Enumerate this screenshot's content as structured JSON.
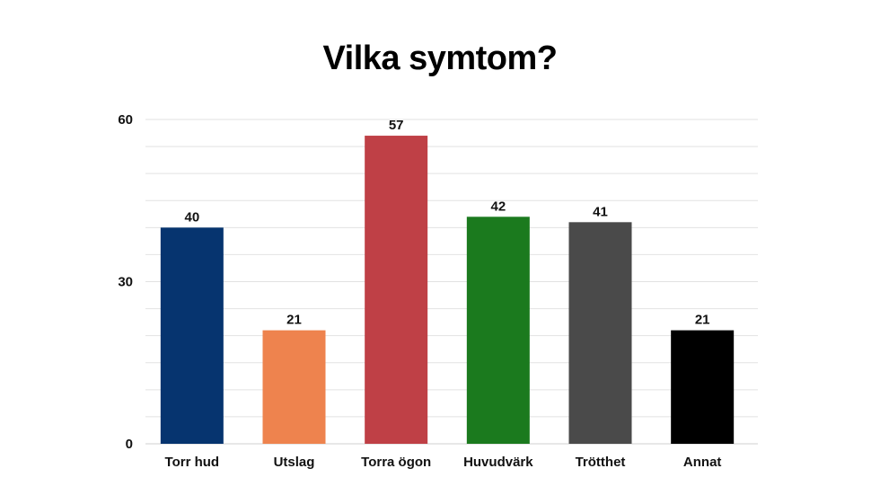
{
  "chart_data": {
    "type": "bar",
    "title": "Vilka symtom?",
    "categories": [
      "Torr hud",
      "Utslag",
      "Torra ögon",
      "Huvudvärk",
      "Trötthet",
      "Annat"
    ],
    "values": [
      40,
      21,
      57,
      42,
      41,
      21
    ],
    "colors": [
      "#06346F",
      "#EE834E",
      "#BF4046",
      "#1B7A1E",
      "#4A4A4A",
      "#000000"
    ],
    "ylim": [
      0,
      60
    ],
    "yticks": [
      0,
      30,
      60
    ],
    "grid": true,
    "xlabel": "",
    "ylabel": ""
  }
}
